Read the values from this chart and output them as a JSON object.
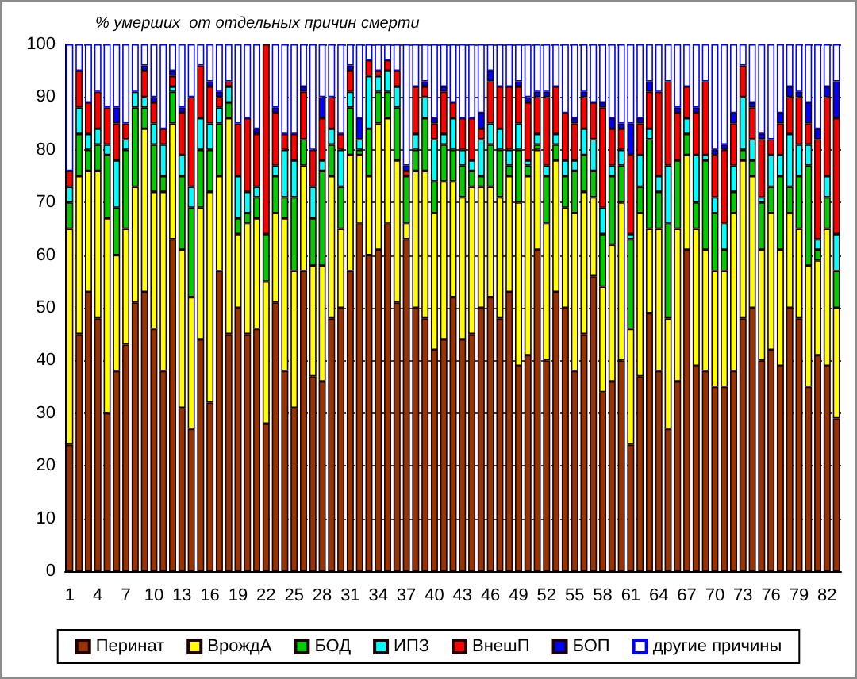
{
  "chart_data": {
    "type": "bar",
    "title": "% умерших  от отдельных причин смерти",
    "stacked": true,
    "categories": [
      "1",
      null,
      null,
      "4",
      null,
      null,
      "7",
      null,
      null,
      "10",
      null,
      null,
      "13",
      null,
      null,
      "16",
      null,
      null,
      "19",
      null,
      null,
      "22",
      null,
      null,
      "25",
      null,
      null,
      "28",
      null,
      null,
      "31",
      null,
      null,
      "34",
      null,
      null,
      "37",
      null,
      null,
      "40",
      null,
      null,
      "43",
      null,
      null,
      "46",
      null,
      null,
      "49",
      null,
      null,
      "52",
      null,
      null,
      "55",
      null,
      null,
      "58",
      null,
      null,
      "61",
      null,
      null,
      "64",
      null,
      null,
      "67",
      null,
      null,
      "70",
      null,
      null,
      "73",
      null,
      null,
      "76",
      null,
      null,
      "79",
      null,
      null,
      "82",
      null
    ],
    "series": [
      {
        "name": "Перинат",
        "color": "#993300",
        "values": [
          24,
          45,
          53,
          48,
          30,
          38,
          43,
          51,
          53,
          46,
          38,
          63,
          31,
          27,
          44,
          32,
          57,
          45,
          50,
          45,
          46,
          28,
          51,
          38,
          31,
          57,
          37,
          36,
          48,
          50,
          57,
          66,
          60,
          61,
          66,
          51,
          63,
          50,
          48,
          42,
          44,
          52,
          44,
          45,
          50,
          52,
          48,
          53,
          39,
          41,
          61,
          40,
          53,
          50,
          38,
          45,
          56,
          34,
          36,
          40,
          24,
          37,
          49,
          38,
          27,
          36,
          61,
          39,
          38,
          35,
          35,
          38,
          48,
          50,
          40,
          42,
          39,
          50,
          48,
          35,
          41,
          39,
          29
        ]
      },
      {
        "name": "ВрождА",
        "color": "#ffff00",
        "values": [
          41,
          30,
          23,
          28,
          37,
          22,
          22,
          22,
          31,
          26,
          34,
          22,
          30,
          25,
          25,
          40,
          18,
          41,
          14,
          21,
          21,
          27,
          17,
          29,
          26,
          20,
          21,
          22,
          27,
          15,
          22,
          13,
          15,
          24,
          20,
          27,
          3,
          26,
          28,
          26,
          30,
          22,
          27,
          28,
          23,
          21,
          23,
          22,
          31,
          34,
          19,
          26,
          25,
          19,
          30,
          27,
          15,
          20,
          26,
          30,
          22,
          31,
          16,
          27,
          21,
          29,
          18,
          26,
          23,
          22,
          22,
          30,
          30,
          25,
          21,
          26,
          22,
          18,
          17,
          23,
          18,
          26,
          21
        ]
      },
      {
        "name": "БОД",
        "color": "#00cc00",
        "values": [
          5,
          8,
          4,
          5,
          12,
          9,
          15,
          15,
          4,
          9,
          3,
          6,
          14,
          17,
          11,
          8,
          10,
          3,
          3,
          2,
          4,
          9,
          7,
          4,
          14,
          5,
          9,
          18,
          6,
          8,
          9,
          1,
          9,
          6,
          5,
          10,
          9,
          4,
          10,
          6,
          7,
          6,
          6,
          3,
          2,
          8,
          9,
          2,
          10,
          2,
          1,
          9,
          3,
          6,
          8,
          7,
          5,
          10,
          13,
          7,
          17,
          5,
          17,
          7,
          18,
          13,
          4,
          5,
          17,
          11,
          4,
          4,
          2,
          3,
          9,
          5,
          14,
          5,
          10,
          19,
          2,
          6,
          7
        ]
      },
      {
        "name": "ИПЗ",
        "color": "#00ffff",
        "values": [
          3,
          5,
          3,
          3,
          2,
          9,
          2,
          3,
          2,
          4,
          6,
          1,
          4,
          4,
          6,
          5,
          3,
          3,
          8,
          4,
          2,
          0,
          2,
          9,
          7,
          0,
          6,
          2,
          3,
          7,
          3,
          2,
          10,
          3,
          4,
          4,
          0,
          3,
          4,
          8,
          2,
          6,
          3,
          2,
          7,
          4,
          4,
          3,
          5,
          1,
          2,
          2,
          2,
          3,
          2,
          5,
          6,
          5,
          2,
          3,
          1,
          6,
          2,
          3,
          11,
          0,
          3,
          9,
          1,
          3,
          5,
          5,
          10,
          4,
          1,
          6,
          4,
          10,
          6,
          4,
          2,
          4,
          7
        ]
      },
      {
        "name": "ВнешП",
        "color": "#ff0000",
        "values": [
          3,
          7,
          6,
          7,
          7,
          7,
          3,
          0,
          5,
          4,
          3,
          2,
          8,
          17,
          10,
          7,
          2,
          1,
          10,
          14,
          10,
          36,
          10,
          3,
          5,
          9,
          7,
          8,
          6,
          3,
          4,
          0,
          3,
          1,
          2,
          3,
          1,
          9,
          2,
          3,
          8,
          3,
          6,
          8,
          2,
          8,
          8,
          12,
          7,
          11,
          7,
          13,
          9,
          9,
          7,
          6,
          7,
          19,
          7,
          4,
          15,
          6,
          7,
          16,
          16,
          9,
          6,
          8,
          14,
          8,
          14,
          8,
          6,
          6,
          11,
          3,
          6,
          7,
          9,
          4,
          19,
          15,
          22
        ]
      },
      {
        "name": "БОП",
        "color": "#0000ff",
        "values": [
          0,
          0,
          0,
          0,
          0,
          3,
          0,
          0,
          1,
          1,
          0,
          1,
          1,
          0,
          0,
          1,
          1,
          0,
          0,
          0,
          1,
          0,
          1,
          0,
          0,
          1,
          0,
          4,
          0,
          0,
          1,
          4,
          0,
          0,
          0,
          0,
          1,
          0,
          1,
          1,
          1,
          0,
          0,
          0,
          3,
          2,
          0,
          0,
          1,
          1,
          1,
          1,
          0,
          0,
          1,
          1,
          0,
          1,
          2,
          1,
          6,
          1,
          2,
          0,
          0,
          1,
          0,
          1,
          0,
          1,
          1,
          2,
          0,
          1,
          1,
          0,
          2,
          2,
          1,
          4,
          2,
          2,
          7
        ]
      },
      {
        "name": "другие причины",
        "color": "#ffffff",
        "values": [
          24,
          5,
          11,
          9,
          12,
          12,
          15,
          9,
          4,
          10,
          16,
          5,
          12,
          10,
          4,
          7,
          9,
          7,
          15,
          14,
          16,
          0,
          12,
          17,
          17,
          8,
          20,
          10,
          10,
          17,
          4,
          14,
          3,
          5,
          3,
          5,
          23,
          8,
          7,
          14,
          8,
          11,
          14,
          14,
          13,
          5,
          8,
          8,
          7,
          10,
          9,
          9,
          8,
          13,
          14,
          9,
          11,
          11,
          14,
          15,
          15,
          14,
          7,
          9,
          7,
          12,
          8,
          12,
          7,
          20,
          19,
          13,
          4,
          11,
          17,
          18,
          13,
          8,
          9,
          11,
          16,
          8,
          7
        ]
      }
    ],
    "ylim": [
      0,
      100
    ],
    "yticks": [
      0,
      10,
      20,
      30,
      40,
      50,
      60,
      70,
      80,
      90,
      100
    ],
    "grid": "y",
    "legend": "bottom"
  }
}
